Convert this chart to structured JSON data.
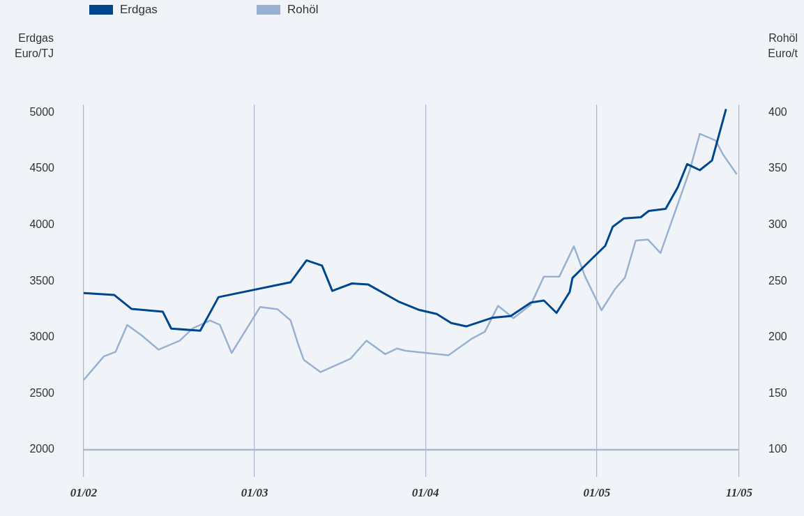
{
  "chart_data": {
    "type": "line",
    "ylabel": "Erdgas\nEuro/TJ",
    "y2label": "Rohöl\nEuro/t",
    "legend": "top left",
    "grid": "x",
    "marker": "none",
    "line_style": "solid",
    "xlim": [
      "2002-01",
      "2005-11"
    ],
    "xticks": [
      {
        "value": "2002-01",
        "label": "01/02"
      },
      {
        "value": "2003-01",
        "label": "01/03"
      },
      {
        "value": "2004-01",
        "label": "01/04"
      },
      {
        "value": "2005-01",
        "label": "01/05"
      },
      {
        "value": "2005-11",
        "label": "11/05"
      }
    ],
    "ylim": [
      1760,
      5070
    ],
    "yticks": [
      2000,
      2500,
      3000,
      3500,
      4000,
      4500,
      5000
    ],
    "y2lim": [
      76,
      407
    ],
    "y2ticks": [
      100,
      150,
      200,
      250,
      300,
      350,
      400
    ],
    "ref_lines": [
      {
        "axis": "y",
        "value": 2000,
        "color": "#a9b8d0"
      }
    ],
    "series": [
      {
        "name": "Erdgas",
        "color": "#00468c",
        "x": [
          "2002-01-01",
          "2002-03-07",
          "2002-04-13",
          "2002-06-19",
          "2002-07-07",
          "2002-09-07",
          "2002-10-16",
          "2003-03-19",
          "2003-04-22",
          "2003-05-25",
          "2003-06-16",
          "2003-07-28",
          "2003-09-01",
          "2003-11-04",
          "2003-12-19",
          "2004-01-25",
          "2004-02-25",
          "2004-03-28",
          "2004-05-22",
          "2004-07-01",
          "2004-08-13",
          "2004-09-10",
          "2004-10-07",
          "2004-11-04",
          "2004-11-10",
          "2004-12-19",
          "2005-01-19",
          "2005-02-04",
          "2005-02-28",
          "2005-04-05",
          "2005-04-22",
          "2005-05-28",
          "2005-06-23",
          "2005-07-13",
          "2005-08-09",
          "2005-09-04",
          "2005-10-04"
        ],
        "values": [
          3393,
          3377,
          3253,
          3227,
          3077,
          3059,
          3357,
          3490,
          3684,
          3638,
          3413,
          3479,
          3469,
          3319,
          3243,
          3207,
          3127,
          3097,
          3173,
          3189,
          3309,
          3327,
          3217,
          3403,
          3528,
          3688,
          3814,
          3983,
          4058,
          4068,
          4124,
          4142,
          4335,
          4541,
          4487,
          4573,
          5030
        ]
      },
      {
        "name": "Rohöl",
        "color": "#98b1d0",
        "axis": "y2",
        "x": [
          "2002-01-01",
          "2002-02-13",
          "2002-03-10",
          "2002-04-04",
          "2002-05-04",
          "2002-06-10",
          "2002-07-25",
          "2002-08-22",
          "2002-09-28",
          "2002-10-19",
          "2002-11-13",
          "2003-01-13",
          "2003-02-19",
          "2003-03-19",
          "2003-04-04",
          "2003-04-16",
          "2003-05-22",
          "2003-07-25",
          "2003-08-28",
          "2003-10-07",
          "2003-11-01",
          "2003-11-19",
          "2004-02-19",
          "2004-04-10",
          "2004-05-07",
          "2004-06-04",
          "2004-07-07",
          "2004-08-13",
          "2004-09-10",
          "2004-10-13",
          "2004-11-13",
          "2004-12-07",
          "2005-01-11",
          "2005-02-09",
          "2005-03-02",
          "2005-03-25",
          "2005-04-20",
          "2005-05-17",
          "2005-07-18",
          "2005-08-09",
          "2005-09-12",
          "2005-09-27",
          "2005-10-27"
        ],
        "values": [
          162,
          183,
          187,
          211,
          202,
          189,
          197,
          208,
          215,
          211,
          186,
          227,
          225,
          215,
          194,
          180,
          169,
          181,
          197,
          185,
          190,
          188,
          184,
          199,
          205,
          228,
          217,
          229,
          254,
          254,
          281,
          254,
          224,
          243,
          253,
          286,
          287,
          275,
          348,
          381,
          375,
          363,
          345
        ]
      }
    ]
  }
}
